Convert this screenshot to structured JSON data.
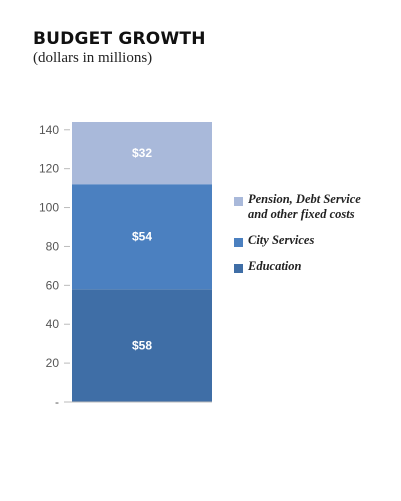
{
  "title": "BUDGET GROWTH",
  "subtitle": "(dollars in millions)",
  "chart_data": {
    "type": "bar",
    "stacked": true,
    "categories": [
      ""
    ],
    "series": [
      {
        "name": "Education",
        "values": [
          58
        ],
        "label": "$58",
        "color": "#3f6ea6"
      },
      {
        "name": "City Services",
        "values": [
          54
        ],
        "label": "$54",
        "color": "#4b80c0"
      },
      {
        "name": "Pension, Debt Service and other fixed costs",
        "values": [
          32
        ],
        "label": "$32",
        "color": "#a9b9da"
      }
    ],
    "yticks": [
      "-",
      "20",
      "40",
      "60",
      "80",
      "100",
      "120",
      "140"
    ],
    "ylim": [
      0,
      144
    ],
    "grid": false,
    "legend_position": "right"
  },
  "legend": [
    {
      "line1": "Pension, Debt Service",
      "line2": "and other fixed costs",
      "color": "#a9b9da"
    },
    {
      "line1": "City Services",
      "line2": "",
      "color": "#4b80c0"
    },
    {
      "line1": "Education",
      "line2": "",
      "color": "#3f6ea6"
    }
  ]
}
